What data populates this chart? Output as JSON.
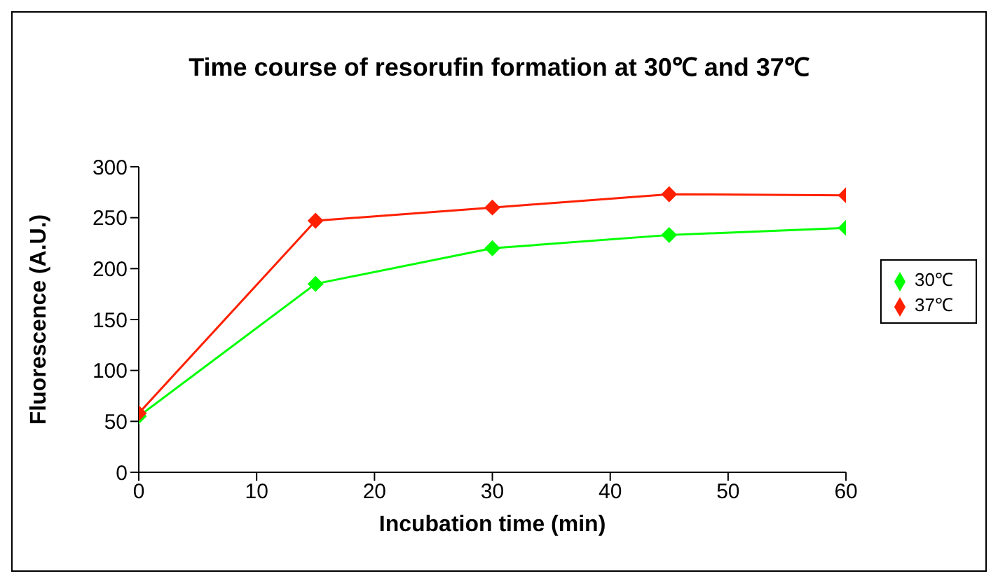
{
  "chart_data": {
    "type": "line",
    "title": "Time course of resorufin formation at 30℃ and 37℃",
    "xlabel": "Incubation time (min)",
    "ylabel": "Fluorescence (A.U.)",
    "x": [
      0,
      15,
      30,
      45,
      60
    ],
    "series": [
      {
        "name": "30℃",
        "color": "#00ff00",
        "values": [
          55,
          185,
          220,
          233,
          240
        ]
      },
      {
        "name": "37℃",
        "color": "#ff2000",
        "values": [
          58,
          247,
          260,
          273,
          272
        ]
      }
    ],
    "xlim": [
      0,
      60
    ],
    "xticks": [
      0,
      10,
      20,
      30,
      40,
      50,
      60
    ],
    "ylim": [
      0,
      300
    ],
    "yticks": [
      0,
      50,
      100,
      150,
      200,
      250,
      300
    ],
    "grid": false,
    "legend": "right",
    "marker": "diamond",
    "line_style": "solid"
  }
}
